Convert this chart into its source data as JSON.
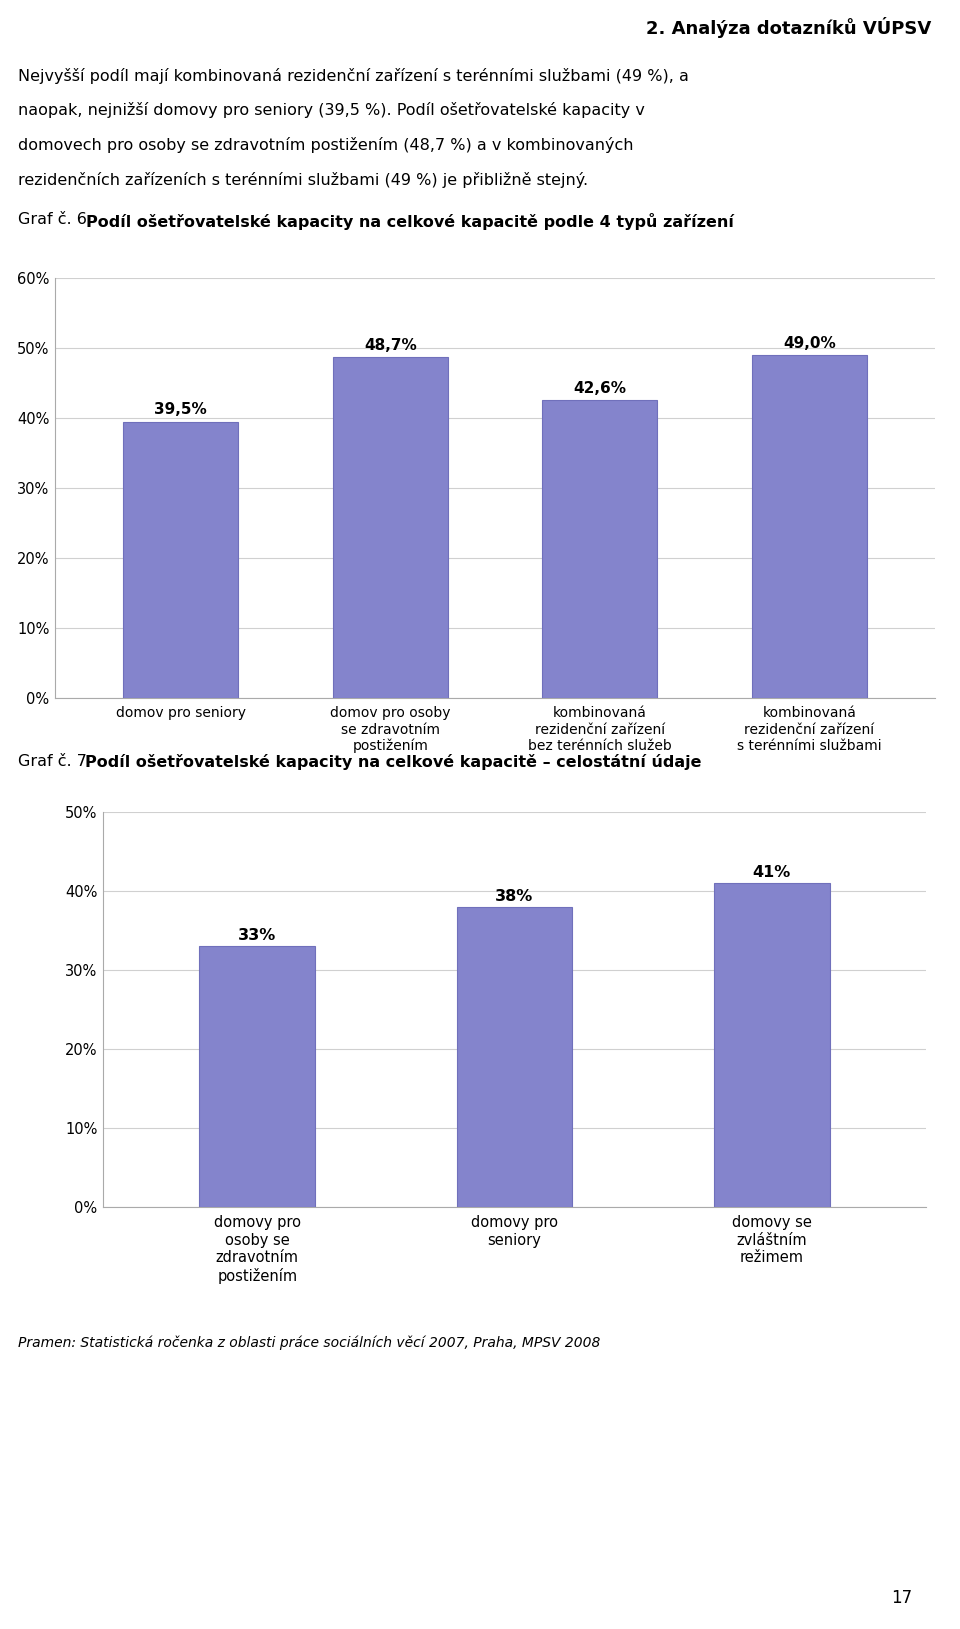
{
  "page_title": "2. Analýza dotazníků VÚPSV",
  "page_number": "17",
  "body_lines": [
    "Nejvyšší podíl mají kombinovaná rezidenční zařízení s terénními službami (49 %), a",
    "naopak, nejnižší domovy pro seniory (39,5 %). Podíl ošetřovatelské kapacity v",
    "domovech pro osoby se zdravotním postižením (48,7 %) a v kombinovaných",
    "rezidenčních zařízeních s terénními službami (49 %) je přibližně stejný."
  ],
  "graf6_prefix": "Graf č. 6 ",
  "graf6_title_bold": "Podíl ošetřovatelské kapacity na celkové kapacitě podle 4 typů zařízení",
  "chart1": {
    "categories": [
      "domov pro seniory",
      "domov pro osoby\nse zdravotním\npostižením",
      "kombinovaná\nrezidenční zařízení\nbez terénních služeb",
      "kombinovaná\nrezidenční zařízení\ns terénními službami"
    ],
    "values": [
      39.5,
      48.7,
      42.6,
      49.0
    ],
    "labels": [
      "39,5%",
      "48,7%",
      "42,6%",
      "49,0%"
    ],
    "bar_color": "#8484CC",
    "ylim": [
      0,
      60
    ],
    "yticks": [
      0,
      10,
      20,
      30,
      40,
      50,
      60
    ],
    "ytick_labels": [
      "0%",
      "10%",
      "20%",
      "30%",
      "40%",
      "50%",
      "60%"
    ],
    "grid_color": "#D0D0D0",
    "bg_color": "#FFFFFF",
    "bar_edge_color": "#7070BB"
  },
  "graf7_prefix": "Graf č. 7 ",
  "graf7_title_bold": "Podíl ošetřovatelské kapacity na celkové kapacitě – celostátní údaje",
  "chart2": {
    "categories": [
      "domovy pro\nosoby se\nzdravotním\npostižením",
      "domovy pro\nseniory",
      "domovy se\nzvláštním\nrežimem"
    ],
    "values": [
      33,
      38,
      41
    ],
    "labels": [
      "33%",
      "38%",
      "41%"
    ],
    "bar_color": "#8484CC",
    "ylim": [
      0,
      50
    ],
    "yticks": [
      0,
      10,
      20,
      30,
      40,
      50
    ],
    "ytick_labels": [
      "0%",
      "10%",
      "20%",
      "30%",
      "40%",
      "50%"
    ],
    "grid_color": "#D0D0D0",
    "bg_color": "#FFFFFF",
    "border_color": "#FFFF00",
    "bar_edge_color": "#7070BB"
  },
  "source_text": "Pramen: Statistická ročenka z oblasti práce sociálních věcí 2007, Praha, MPSV 2008",
  "background_color": "#FFFFFF"
}
